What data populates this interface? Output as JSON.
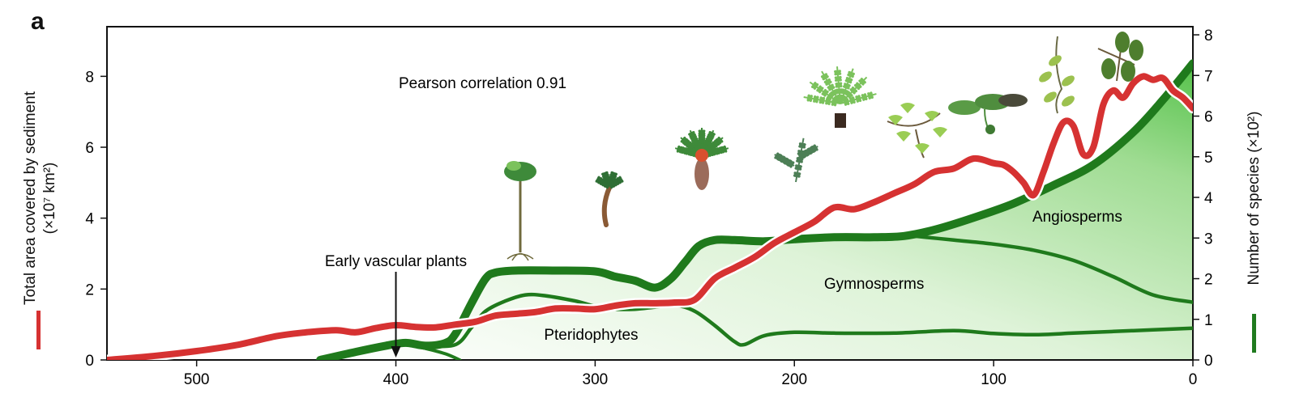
{
  "panel_label": "a",
  "colors": {
    "sediment": "#d63232",
    "species": "#1f7a1c",
    "fill_light": "#eaf7e6",
    "fill_dark": "#5cc353"
  },
  "chart_data": {
    "type": "line",
    "panel": "a",
    "annotation_correlation": "Pearson correlation 0.91",
    "annotation_early": "Early vascular plants",
    "annotation_early_x": 400,
    "x_reversed": true,
    "xlim": [
      0,
      545
    ],
    "xticks": [
      500,
      400,
      300,
      200,
      100,
      0
    ],
    "left_axis": {
      "label_line1": "Total area covered by sediment",
      "label_line2": "(×10⁷ km²)",
      "ylim": [
        0,
        9.4
      ],
      "ticks": [
        0,
        2,
        4,
        6,
        8
      ]
    },
    "right_axis": {
      "label": "Number of species (×10²)",
      "ylim": [
        0,
        8.2
      ],
      "ticks": [
        0,
        1,
        2,
        3,
        4,
        5,
        6,
        7,
        8
      ]
    },
    "series": [
      {
        "name": "sediment",
        "axis": "left",
        "points": [
          [
            545,
            0
          ],
          [
            520,
            0.12
          ],
          [
            500,
            0.25
          ],
          [
            480,
            0.42
          ],
          [
            460,
            0.67
          ],
          [
            445,
            0.78
          ],
          [
            430,
            0.84
          ],
          [
            420,
            0.78
          ],
          [
            410,
            0.9
          ],
          [
            400,
            0.98
          ],
          [
            390,
            0.93
          ],
          [
            380,
            0.92
          ],
          [
            370,
            1.0
          ],
          [
            360,
            1.08
          ],
          [
            350,
            1.25
          ],
          [
            340,
            1.3
          ],
          [
            330,
            1.35
          ],
          [
            320,
            1.45
          ],
          [
            310,
            1.45
          ],
          [
            300,
            1.43
          ],
          [
            290,
            1.53
          ],
          [
            280,
            1.6
          ],
          [
            270,
            1.6
          ],
          [
            260,
            1.62
          ],
          [
            250,
            1.7
          ],
          [
            240,
            2.3
          ],
          [
            230,
            2.6
          ],
          [
            220,
            2.9
          ],
          [
            210,
            3.3
          ],
          [
            200,
            3.6
          ],
          [
            190,
            3.9
          ],
          [
            180,
            4.3
          ],
          [
            170,
            4.25
          ],
          [
            160,
            4.45
          ],
          [
            150,
            4.7
          ],
          [
            140,
            4.95
          ],
          [
            130,
            5.3
          ],
          [
            120,
            5.4
          ],
          [
            110,
            5.68
          ],
          [
            100,
            5.55
          ],
          [
            95,
            5.5
          ],
          [
            90,
            5.3
          ],
          [
            85,
            5.0
          ],
          [
            80,
            4.65
          ],
          [
            75,
            5.3
          ],
          [
            70,
            6.1
          ],
          [
            65,
            6.7
          ],
          [
            60,
            6.6
          ],
          [
            55,
            5.8
          ],
          [
            50,
            6.0
          ],
          [
            45,
            7.2
          ],
          [
            40,
            7.6
          ],
          [
            35,
            7.4
          ],
          [
            30,
            7.8
          ],
          [
            25,
            8.0
          ],
          [
            20,
            7.9
          ],
          [
            15,
            7.95
          ],
          [
            10,
            7.6
          ],
          [
            5,
            7.4
          ],
          [
            0,
            7.1
          ]
        ]
      },
      {
        "name": "total",
        "axis": "right",
        "points": [
          [
            438,
            0
          ],
          [
            420,
            0.2
          ],
          [
            405,
            0.35
          ],
          [
            395,
            0.42
          ],
          [
            385,
            0.35
          ],
          [
            375,
            0.42
          ],
          [
            370,
            0.65
          ],
          [
            362,
            1.4
          ],
          [
            355,
            2.0
          ],
          [
            350,
            2.15
          ],
          [
            340,
            2.2
          ],
          [
            320,
            2.2
          ],
          [
            300,
            2.18
          ],
          [
            290,
            2.05
          ],
          [
            280,
            1.95
          ],
          [
            270,
            1.78
          ],
          [
            262,
            2.0
          ],
          [
            255,
            2.4
          ],
          [
            248,
            2.8
          ],
          [
            240,
            2.95
          ],
          [
            230,
            2.95
          ],
          [
            215,
            2.92
          ],
          [
            200,
            2.97
          ],
          [
            180,
            3.02
          ],
          [
            160,
            3.02
          ],
          [
            145,
            3.05
          ],
          [
            130,
            3.2
          ],
          [
            110,
            3.5
          ],
          [
            90,
            3.85
          ],
          [
            70,
            4.3
          ],
          [
            50,
            4.8
          ],
          [
            30,
            5.6
          ],
          [
            15,
            6.4
          ],
          [
            0,
            7.3
          ]
        ]
      },
      {
        "name": "pteridophytes",
        "axis": "right",
        "points": [
          [
            405,
            0.38
          ],
          [
            395,
            0.42
          ],
          [
            385,
            0.35
          ],
          [
            370,
            0.38
          ],
          [
            362,
            0.8
          ],
          [
            355,
            1.2
          ],
          [
            345,
            1.45
          ],
          [
            335,
            1.6
          ],
          [
            325,
            1.58
          ],
          [
            310,
            1.45
          ],
          [
            300,
            1.32
          ],
          [
            290,
            1.25
          ],
          [
            280,
            1.25
          ],
          [
            270,
            1.3
          ],
          [
            260,
            1.35
          ],
          [
            250,
            1.2
          ],
          [
            240,
            0.85
          ],
          [
            230,
            0.45
          ],
          [
            225,
            0.38
          ],
          [
            215,
            0.6
          ],
          [
            200,
            0.68
          ],
          [
            180,
            0.66
          ],
          [
            150,
            0.66
          ],
          [
            120,
            0.72
          ],
          [
            100,
            0.65
          ],
          [
            80,
            0.62
          ],
          [
            60,
            0.66
          ],
          [
            40,
            0.7
          ],
          [
            20,
            0.74
          ],
          [
            0,
            0.78
          ]
        ]
      },
      {
        "name": "gymnosperms",
        "axis": "right",
        "points": [
          [
            140,
            3.05
          ],
          [
            120,
            2.95
          ],
          [
            100,
            2.85
          ],
          [
            80,
            2.7
          ],
          [
            60,
            2.45
          ],
          [
            40,
            2.05
          ],
          [
            20,
            1.6
          ],
          [
            0,
            1.42
          ]
        ]
      },
      {
        "name": "early",
        "axis": "right",
        "points": [
          [
            405,
            0.35
          ],
          [
            395,
            0.38
          ],
          [
            385,
            0.28
          ],
          [
            375,
            0.15
          ],
          [
            368,
            0
          ]
        ]
      }
    ],
    "region_labels": [
      {
        "text": "Pteridophytes",
        "x": 302,
        "y": 0.5
      },
      {
        "text": "Gymnosperms",
        "x": 160,
        "y": 1.75
      },
      {
        "text": "Angiosperms",
        "x": 58,
        "y": 3.4
      }
    ]
  }
}
